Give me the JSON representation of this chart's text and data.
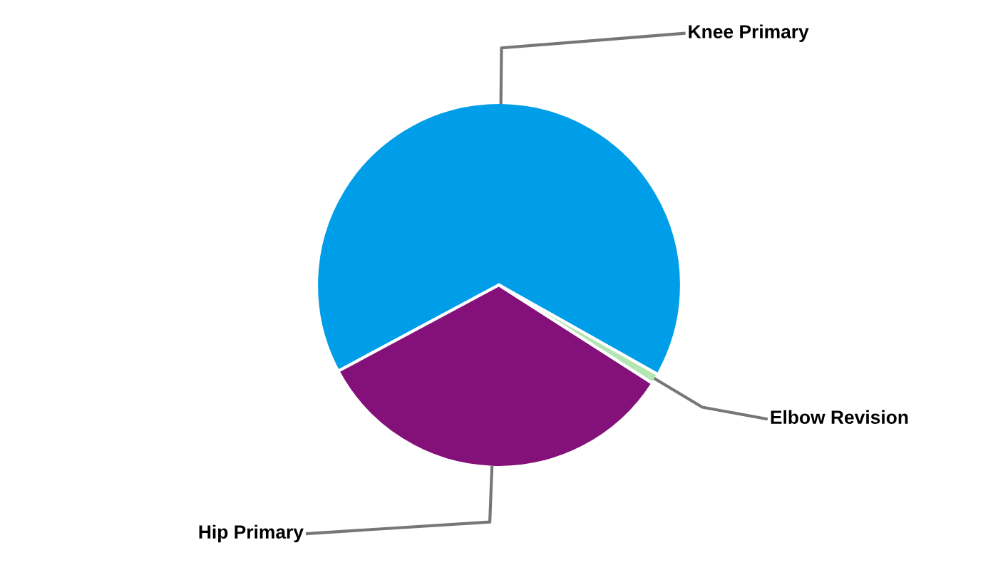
{
  "chart_data": {
    "type": "pie",
    "categories": [
      "Knee Primary",
      "Hip Primary",
      "Elbow Revision"
    ],
    "values": [
      66,
      33.1,
      0.9
    ],
    "colors": [
      "#009ee8",
      "#84107a",
      "#b4e6b4"
    ],
    "legend": false
  }
}
